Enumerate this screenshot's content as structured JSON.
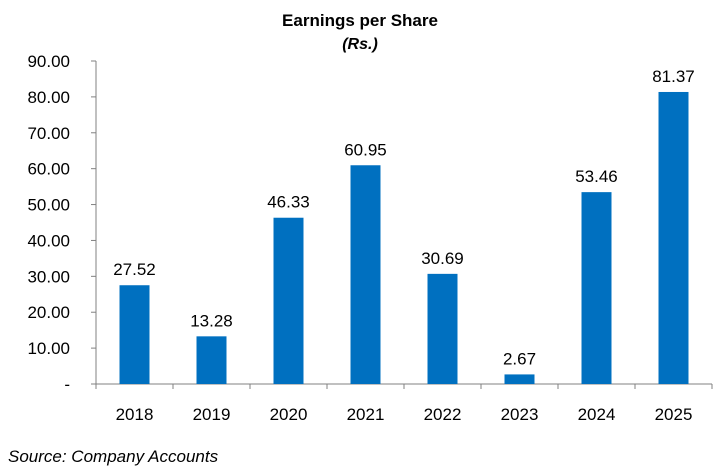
{
  "chart_data": {
    "type": "bar",
    "title": "Earnings per Share",
    "subtitle": "(Rs.)",
    "categories": [
      "2018",
      "2019",
      "2020",
      "2021",
      "2022",
      "2023",
      "2024",
      "2025"
    ],
    "values": [
      27.52,
      13.28,
      46.33,
      60.95,
      30.69,
      2.67,
      53.46,
      81.37
    ],
    "data_labels": [
      "27.52",
      "13.28",
      "46.33",
      "60.95",
      "30.69",
      "2.67",
      "53.46",
      "81.37"
    ],
    "y_ticks": [
      "-",
      "10.00",
      "20.00",
      "30.00",
      "40.00",
      "50.00",
      "60.00",
      "70.00",
      "80.00",
      "90.00"
    ],
    "ylim": [
      0,
      90
    ],
    "grid": false,
    "legend": "none",
    "bar_color": "#0070C0",
    "source": "Source: Company Accounts"
  }
}
